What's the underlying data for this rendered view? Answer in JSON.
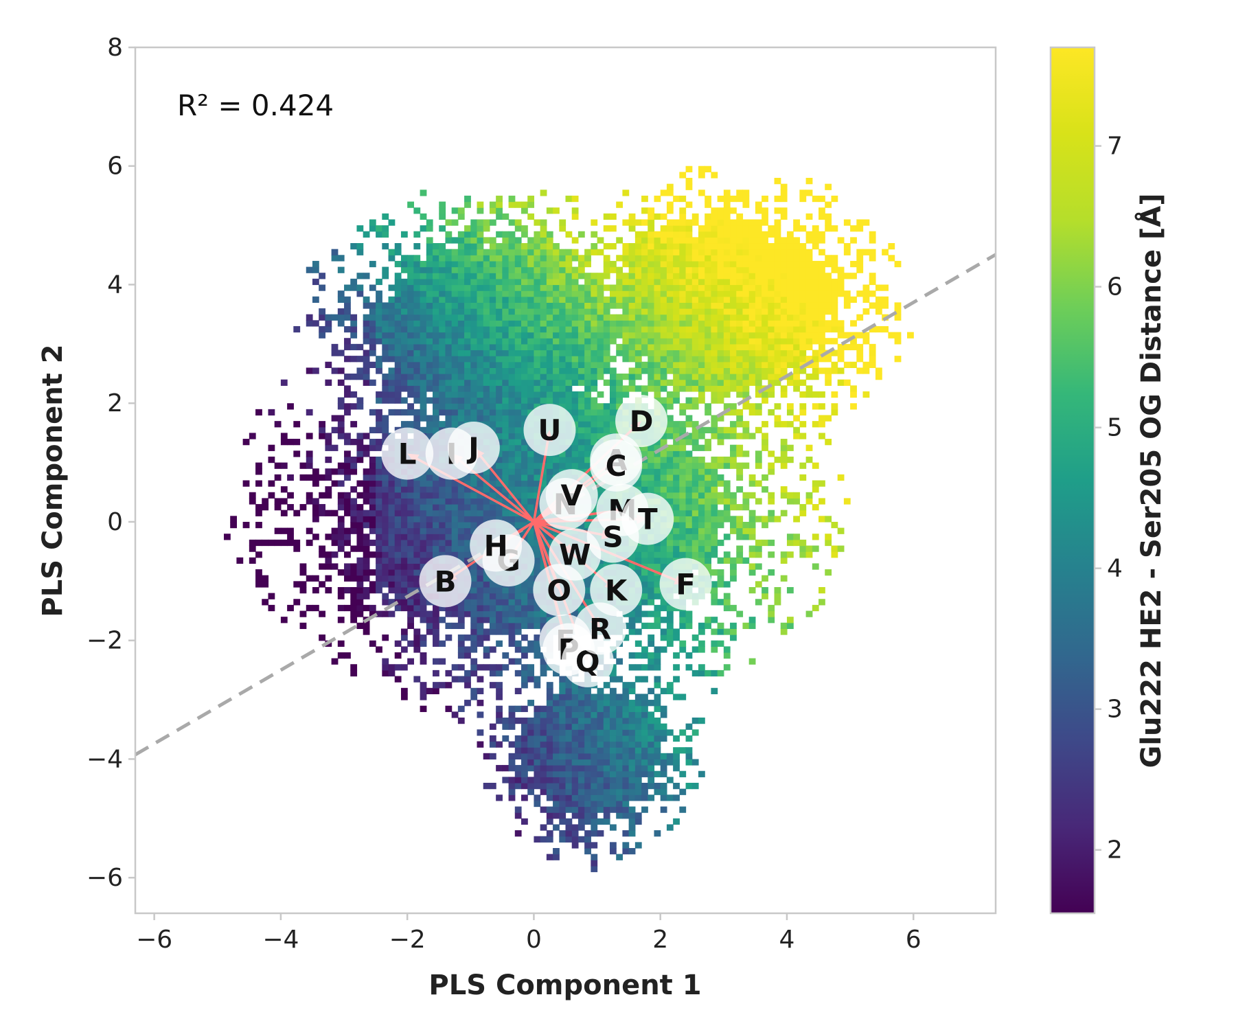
{
  "chart_data": {
    "type": "heatmap",
    "xlabel": "PLS Component 1",
    "ylabel": "PLS Component 2",
    "xlim": [
      -6.3,
      7.3
    ],
    "ylim": [
      -6.6,
      8.0
    ],
    "x_ticks": [
      -6,
      -4,
      -2,
      0,
      2,
      4,
      6
    ],
    "y_ticks": [
      -6,
      -4,
      -2,
      0,
      2,
      4,
      6,
      8
    ],
    "x_tick_labels": [
      "−6",
      "−4",
      "−2",
      "0",
      "2",
      "4",
      "6"
    ],
    "y_tick_labels": [
      "−6",
      "−4",
      "−2",
      "0",
      "2",
      "4",
      "6",
      "8"
    ],
    "annotation": "R² = 0.424",
    "r_squared": 0.424,
    "fit_line": {
      "slope": 0.62,
      "intercept": -0.02,
      "style": "dashed",
      "color": "#a9a9a9"
    },
    "colorbar": {
      "label": "Glu222 HE2 - Ser205 OG Distance [Å]",
      "range": [
        1.55,
        7.7
      ],
      "ticks": [
        2,
        3,
        4,
        5,
        6,
        7
      ],
      "tick_labels": [
        "2",
        "3",
        "4",
        "5",
        "6",
        "7"
      ],
      "colormap": "viridis"
    },
    "origin": [
      0.0,
      0.0
    ],
    "loading_vector_color": "#ff6b6b",
    "loadings": [
      {
        "label": "A",
        "x": 1.3,
        "y": 1.05
      },
      {
        "label": "B",
        "x": -1.4,
        "y": -1.0
      },
      {
        "label": "C",
        "x": 1.3,
        "y": 0.95
      },
      {
        "label": "D",
        "x": 1.7,
        "y": 1.7
      },
      {
        "label": "E",
        "x": 0.5,
        "y": -2.0
      },
      {
        "label": "F",
        "x": 2.4,
        "y": -1.05
      },
      {
        "label": "G",
        "x": -0.4,
        "y": -0.65
      },
      {
        "label": "H",
        "x": -0.6,
        "y": -0.4
      },
      {
        "label": "I",
        "x": -1.3,
        "y": 1.15
      },
      {
        "label": "J",
        "x": -0.95,
        "y": 1.25
      },
      {
        "label": "K",
        "x": 1.3,
        "y": -1.15
      },
      {
        "label": "L",
        "x": -2.0,
        "y": 1.15
      },
      {
        "label": "M",
        "x": 1.4,
        "y": 0.2
      },
      {
        "label": "N",
        "x": 0.5,
        "y": 0.3
      },
      {
        "label": "O",
        "x": 0.4,
        "y": -1.15
      },
      {
        "label": "P",
        "x": 0.55,
        "y": -2.15
      },
      {
        "label": "Q",
        "x": 0.85,
        "y": -2.35
      },
      {
        "label": "R",
        "x": 1.05,
        "y": -1.8
      },
      {
        "label": "S",
        "x": 1.25,
        "y": -0.25
      },
      {
        "label": "T",
        "x": 1.8,
        "y": 0.05
      },
      {
        "label": "U",
        "x": 0.25,
        "y": 1.55
      },
      {
        "label": "V",
        "x": 0.6,
        "y": 0.45
      },
      {
        "label": "W",
        "x": 0.65,
        "y": -0.55
      }
    ],
    "density": {
      "description_of_shape": "2D histogram of conformations; colored by mean distance, low (~1.6 Å) on the left/bottom, high (~7.5 Å) on the right",
      "center": [
        0.0,
        0.0
      ],
      "bin_size": 0.1
    }
  }
}
